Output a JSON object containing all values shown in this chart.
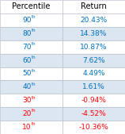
{
  "header": [
    "Percentile",
    "Return"
  ],
  "rows": [
    {
      "percentile": "90",
      "suffix": "th",
      "return": "20.43%",
      "positive": true
    },
    {
      "percentile": "80",
      "suffix": "th",
      "return": "14.38%",
      "positive": true
    },
    {
      "percentile": "70",
      "suffix": "th",
      "return": "10.87%",
      "positive": true
    },
    {
      "percentile": "60",
      "suffix": "th",
      "return": "7.62%",
      "positive": true
    },
    {
      "percentile": "50",
      "suffix": "th",
      "return": "4.49%",
      "positive": true
    },
    {
      "percentile": "40",
      "suffix": "th",
      "return": "1.61%",
      "positive": true
    },
    {
      "percentile": "30",
      "suffix": "th",
      "return": "-0.94%",
      "positive": false
    },
    {
      "percentile": "20",
      "suffix": "th",
      "return": "-4.52%",
      "positive": false
    },
    {
      "percentile": "10",
      "suffix": "th",
      "return": "-10.36%",
      "positive": false
    }
  ],
  "header_bg": "#ffffff",
  "header_text_color": "#000000",
  "positive_color": "#0070C0",
  "negative_color": "#FF0000",
  "row_bg_alt": "#dce6f1",
  "row_bg_white": "#ffffff",
  "grid_color": "#b0b8c8",
  "font_size": 6.5,
  "header_font_size": 7.0,
  "col_split": 0.5
}
